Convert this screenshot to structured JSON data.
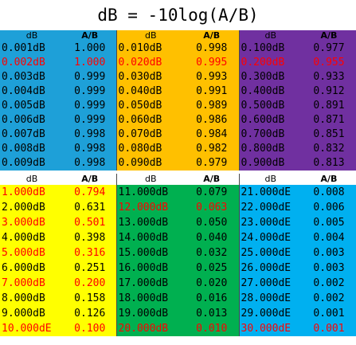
{
  "title": "dB = -10log(A/B)",
  "headers": {
    "db": "dB",
    "ab": "A/B"
  },
  "top_blocks": [
    {
      "color": "#1ea0d8",
      "rows": [
        {
          "db": "0.001dB",
          "ab": "1.000",
          "color": "#000000"
        },
        {
          "db": "0.002dB",
          "ab": "1.000",
          "color": "#ff0000"
        },
        {
          "db": "0.003dB",
          "ab": "0.999",
          "color": "#000000"
        },
        {
          "db": "0.004dB",
          "ab": "0.999",
          "color": "#000000"
        },
        {
          "db": "0.005dB",
          "ab": "0.999",
          "color": "#000000"
        },
        {
          "db": "0.006dB",
          "ab": "0.999",
          "color": "#000000"
        },
        {
          "db": "0.007dB",
          "ab": "0.998",
          "color": "#000000"
        },
        {
          "db": "0.008dB",
          "ab": "0.998",
          "color": "#000000"
        },
        {
          "db": "0.009dB",
          "ab": "0.998",
          "color": "#000000"
        }
      ]
    },
    {
      "color": "#ffc000",
      "rows": [
        {
          "db": "0.010dB",
          "ab": "0.998",
          "color": "#000000"
        },
        {
          "db": "0.020dB",
          "ab": "0.995",
          "color": "#ff0000"
        },
        {
          "db": "0.030dB",
          "ab": "0.993",
          "color": "#000000"
        },
        {
          "db": "0.040dB",
          "ab": "0.991",
          "color": "#000000"
        },
        {
          "db": "0.050dB",
          "ab": "0.989",
          "color": "#000000"
        },
        {
          "db": "0.060dB",
          "ab": "0.986",
          "color": "#000000"
        },
        {
          "db": "0.070dB",
          "ab": "0.984",
          "color": "#000000"
        },
        {
          "db": "0.080dB",
          "ab": "0.982",
          "color": "#000000"
        },
        {
          "db": "0.090dB",
          "ab": "0.979",
          "color": "#000000"
        }
      ]
    },
    {
      "color": "#7030a0",
      "rows": [
        {
          "db": "0.100dB",
          "ab": "0.977",
          "color": "#000000"
        },
        {
          "db": "0.200dB",
          "ab": "0.955",
          "color": "#ff0000"
        },
        {
          "db": "0.300dB",
          "ab": "0.933",
          "color": "#000000"
        },
        {
          "db": "0.400dB",
          "ab": "0.912",
          "color": "#000000"
        },
        {
          "db": "0.500dB",
          "ab": "0.891",
          "color": "#000000"
        },
        {
          "db": "0.600dB",
          "ab": "0.871",
          "color": "#000000"
        },
        {
          "db": "0.700dB",
          "ab": "0.851",
          "color": "#000000"
        },
        {
          "db": "0.800dB",
          "ab": "0.832",
          "color": "#000000"
        },
        {
          "db": "0.900dB",
          "ab": "0.813",
          "color": "#000000"
        }
      ]
    }
  ],
  "bottom_blocks": [
    {
      "color": "#ffff00",
      "rows": [
        {
          "db": "1.000dB",
          "ab": "0.794",
          "color": "#ff0000"
        },
        {
          "db": "2.000dB",
          "ab": "0.631",
          "color": "#000000"
        },
        {
          "db": "3.000dB",
          "ab": "0.501",
          "color": "#ff0000"
        },
        {
          "db": "4.000dB",
          "ab": "0.398",
          "color": "#000000"
        },
        {
          "db": "5.000dB",
          "ab": "0.316",
          "color": "#ff0000"
        },
        {
          "db": "6.000dB",
          "ab": "0.251",
          "color": "#000000"
        },
        {
          "db": "7.000dB",
          "ab": "0.200",
          "color": "#ff0000"
        },
        {
          "db": "8.000dB",
          "ab": "0.158",
          "color": "#000000"
        },
        {
          "db": "9.000dB",
          "ab": "0.126",
          "color": "#000000"
        },
        {
          "db": "10.000dE",
          "ab": "0.100",
          "color": "#ff0000"
        }
      ]
    },
    {
      "color": "#00b050",
      "rows": [
        {
          "db": "11.000dB",
          "ab": "0.079",
          "color": "#000000"
        },
        {
          "db": "12.000dB",
          "ab": "0.063",
          "color": "#ff0000"
        },
        {
          "db": "13.000dB",
          "ab": "0.050",
          "color": "#000000"
        },
        {
          "db": "14.000dB",
          "ab": "0.040",
          "color": "#000000"
        },
        {
          "db": "15.000dB",
          "ab": "0.032",
          "color": "#000000"
        },
        {
          "db": "16.000dB",
          "ab": "0.025",
          "color": "#000000"
        },
        {
          "db": "17.000dB",
          "ab": "0.020",
          "color": "#000000"
        },
        {
          "db": "18.000dB",
          "ab": "0.016",
          "color": "#000000"
        },
        {
          "db": "19.000dB",
          "ab": "0.013",
          "color": "#000000"
        },
        {
          "db": "20.000dB",
          "ab": "0.010",
          "color": "#ff0000"
        }
      ]
    },
    {
      "color": "#00b0f0",
      "rows": [
        {
          "db": "21.000dE",
          "ab": "0.008",
          "color": "#000000"
        },
        {
          "db": "22.000dE",
          "ab": "0.006",
          "color": "#000000"
        },
        {
          "db": "23.000dE",
          "ab": "0.005",
          "color": "#000000"
        },
        {
          "db": "24.000dE",
          "ab": "0.004",
          "color": "#000000"
        },
        {
          "db": "25.000dE",
          "ab": "0.003",
          "color": "#000000"
        },
        {
          "db": "26.000dE",
          "ab": "0.003",
          "color": "#000000"
        },
        {
          "db": "27.000dE",
          "ab": "0.002",
          "color": "#000000"
        },
        {
          "db": "28.000dE",
          "ab": "0.002",
          "color": "#000000"
        },
        {
          "db": "29.000dE",
          "ab": "0.001",
          "color": "#000000"
        },
        {
          "db": "30.000dE",
          "ab": "0.001",
          "color": "#ff0000"
        }
      ]
    }
  ]
}
